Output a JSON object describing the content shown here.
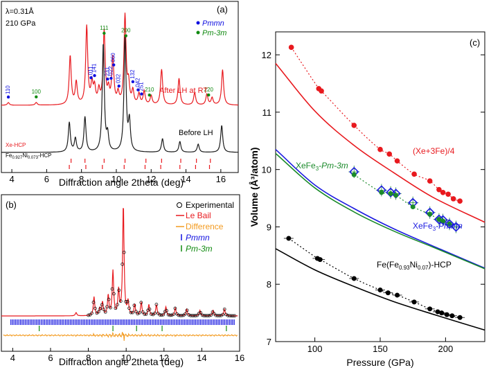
{
  "chart_data": [
    {
      "panel": "(a)",
      "type": "line",
      "xlabel": "Diffraction angle 2theta (deg)",
      "xlim": [
        3.4,
        17.0
      ],
      "xticks": [
        4,
        6,
        8,
        10,
        12,
        14,
        16
      ],
      "wavelength_label": "λ=0.31Å",
      "pressure_label": "210 GPa",
      "legend": [
        {
          "name": "Pmmn",
          "color": "#1010e0"
        },
        {
          "name": "Pm-3m",
          "color": "#108a10"
        }
      ],
      "trace_labels": {
        "after": "After LH at RT",
        "before": "Before LH"
      },
      "phase_labels": {
        "xe": "Xe-HCP",
        "fe_main": "Fe",
        "fe_sub": "0.927",
        "ni": "Ni",
        "ni_sub": "0.073",
        "fe_tail": "-HCP"
      },
      "series": [
        {
          "name": "After LH at RT",
          "color": "#e8191e",
          "baseline": 0.0,
          "peaks": [
            [
              3.8,
              0.03
            ],
            [
              5.4,
              0.03
            ],
            [
              7.35,
              0.55
            ],
            [
              7.7,
              0.25
            ],
            [
              8.3,
              0.88
            ],
            [
              8.6,
              0.22
            ],
            [
              8.75,
              0.18
            ],
            [
              9.0,
              0.15
            ],
            [
              9.3,
              0.82
            ],
            [
              9.55,
              0.15
            ],
            [
              9.8,
              0.52
            ],
            [
              10.1,
              0.12
            ],
            [
              10.5,
              1.0
            ],
            [
              10.7,
              0.22
            ],
            [
              10.95,
              0.15
            ],
            [
              11.3,
              0.12
            ],
            [
              11.6,
              0.15
            ],
            [
              12.0,
              0.1
            ],
            [
              12.6,
              0.4
            ],
            [
              13.6,
              0.3
            ],
            [
              14.5,
              0.14
            ],
            [
              15.2,
              0.12
            ],
            [
              15.5,
              0.08
            ],
            [
              16.1,
              0.4
            ]
          ]
        },
        {
          "name": "Before LH",
          "color": "#1a1a1a",
          "baseline": 0.0,
          "peaks": [
            [
              7.3,
              0.22
            ],
            [
              7.65,
              0.1
            ],
            [
              8.2,
              0.26
            ],
            [
              9.25,
              0.8
            ],
            [
              9.5,
              0.12
            ],
            [
              10.5,
              0.85
            ],
            [
              10.75,
              0.22
            ],
            [
              12.65,
              0.1
            ],
            [
              13.65,
              0.08
            ],
            [
              14.7,
              0.06
            ],
            [
              16.05,
              0.2
            ]
          ]
        }
      ],
      "pmmn_markers": [
        {
          "x": 3.8,
          "label": "110"
        },
        {
          "x": 8.55,
          "label": "011"
        },
        {
          "x": 8.75,
          "label": "141"
        },
        {
          "x": 9.5,
          "label": "231"
        },
        {
          "x": 9.7,
          "label": "022"
        },
        {
          "x": 9.85,
          "label": "060"
        },
        {
          "x": 10.15,
          "label": "032"
        },
        {
          "x": 10.95,
          "label": "132"
        },
        {
          "x": 11.25,
          "label": "042"
        },
        {
          "x": 11.45,
          "label": "251"
        }
      ],
      "pm3m_markers": [
        {
          "x": 5.4,
          "label": "100"
        },
        {
          "x": 9.3,
          "label": "111"
        },
        {
          "x": 10.55,
          "label": "200"
        },
        {
          "x": 11.9,
          "label": "210"
        },
        {
          "x": 15.3,
          "label": "220"
        }
      ],
      "xe_ticks": [
        7.4,
        8.2,
        9.3,
        10.5,
        11.7,
        12.6,
        13.7,
        14.6,
        15.4
      ],
      "fe_ticks": [
        7.3,
        8.25,
        9.2,
        10.45,
        11.65,
        12.55,
        13.65,
        14.55,
        15.35
      ]
    },
    {
      "panel": "(b)",
      "type": "line",
      "xlabel": "Diffraction angle 2theta (deg)",
      "xlim": [
        3.4,
        16.0
      ],
      "xticks": [
        4,
        6,
        8,
        10,
        12,
        14,
        16
      ],
      "legend": [
        {
          "name": "Experimental",
          "color": "#000000",
          "marker": "circle"
        },
        {
          "name": "Le Bail",
          "color": "#e8191e"
        },
        {
          "name": "Difference",
          "color": "#f39a1e"
        },
        {
          "name": "Pmmn",
          "color": "#1010e0",
          "marker": "tick"
        },
        {
          "name": "Pm-3m",
          "color": "#108a10",
          "marker": "tick"
        }
      ],
      "peaks": [
        [
          7.35,
          0.03
        ],
        [
          8.3,
          0.17
        ],
        [
          8.6,
          0.06
        ],
        [
          8.75,
          0.12
        ],
        [
          9.05,
          0.18
        ],
        [
          9.3,
          0.4
        ],
        [
          9.6,
          0.22
        ],
        [
          9.85,
          1.0
        ],
        [
          10.1,
          0.12
        ],
        [
          10.45,
          0.1
        ],
        [
          10.8,
          0.12
        ],
        [
          11.2,
          0.1
        ],
        [
          11.6,
          0.1
        ],
        [
          12.1,
          0.08
        ],
        [
          12.6,
          0.07
        ],
        [
          13.2,
          0.06
        ],
        [
          13.9,
          0.05
        ],
        [
          14.6,
          0.05
        ],
        [
          15.2,
          0.06
        ]
      ]
    },
    {
      "panel": "(c)",
      "type": "scatter",
      "xlabel": "Pressure (GPa)",
      "ylabel": "Volume (Å³/atom)",
      "xlim": [
        70,
        230
      ],
      "ylim": [
        7.0,
        12.4
      ],
      "xticks": [
        100,
        150,
        200
      ],
      "yticks": [
        7,
        8,
        9,
        10,
        11,
        12
      ],
      "series": [
        {
          "name": "(Xe+3Fe)/4",
          "color": "#e8191e",
          "kind": "points",
          "x": [
            82,
            103,
            105,
            130,
            150,
            157,
            163,
            176,
            188,
            195,
            198,
            202,
            206,
            211
          ],
          "y": [
            12.13,
            11.41,
            11.37,
            10.77,
            10.35,
            10.27,
            10.15,
            9.92,
            9.8,
            9.65,
            9.6,
            9.57,
            9.49,
            9.45
          ]
        },
        {
          "name": "XeFe3-Pm-3m",
          "color": "#1a8a2a",
          "kind": "points",
          "x": [
            130,
            151,
            158,
            162,
            175,
            188,
            195,
            198,
            203
          ],
          "y": [
            9.91,
            9.6,
            9.58,
            9.55,
            9.35,
            9.22,
            9.13,
            9.1,
            9.05
          ]
        },
        {
          "name": "XeFe3-Pmmn",
          "color": "#1a1ae0",
          "kind": "diamonds",
          "x": [
            130,
            151,
            158,
            162,
            175,
            188,
            195,
            198,
            203,
            208
          ],
          "y": [
            9.96,
            9.64,
            9.6,
            9.58,
            9.42,
            9.25,
            9.13,
            9.12,
            9.05,
            9.0
          ]
        },
        {
          "name": "Fe(Fe0.93Ni0.07)-HCP",
          "color": "#000000",
          "kind": "points",
          "x": [
            80,
            102,
            104,
            130,
            150,
            156,
            163,
            176,
            188,
            194,
            197,
            201,
            205,
            211
          ],
          "y": [
            8.8,
            8.45,
            8.43,
            8.1,
            7.9,
            7.85,
            7.81,
            7.69,
            7.57,
            7.52,
            7.5,
            7.47,
            7.45,
            7.42
          ]
        },
        {
          "name": "Xe+3Fe calc",
          "color": "#e8191e",
          "kind": "line",
          "x": [
            70,
            100,
            130,
            160,
            190,
            230
          ],
          "y": [
            11.85,
            11.02,
            10.42,
            9.95,
            9.52,
            9.08
          ]
        },
        {
          "name": "Pmmn calc",
          "color": "#1a1ae0",
          "kind": "line",
          "x": [
            70,
            100,
            130,
            160,
            190,
            230
          ],
          "y": [
            10.35,
            9.73,
            9.32,
            8.97,
            8.67,
            8.28
          ]
        },
        {
          "name": "Pm-3m calc",
          "color": "#1a8a2a",
          "kind": "line",
          "x": [
            70,
            100,
            130,
            160,
            190,
            230
          ],
          "y": [
            10.28,
            9.68,
            9.26,
            8.93,
            8.65,
            8.27
          ]
        },
        {
          "name": "Fe calc",
          "color": "#000000",
          "kind": "line",
          "x": [
            70,
            100,
            130,
            160,
            190,
            230
          ],
          "y": [
            8.62,
            8.25,
            7.96,
            7.7,
            7.48,
            7.2
          ]
        }
      ],
      "labels": {
        "xe3fe": "(Xe+3Fe)/4",
        "pm3m_a": "XeFe",
        "pm3m_sub": "3",
        "pm3m_b": "-Pm-3m",
        "pmmn_a": "XeFe",
        "pmmn_sub": "3",
        "pmmn_b": "-Pmmn",
        "fe_a": "Fe(Fe",
        "fe_sub1": "0.93",
        "fe_b": "Ni",
        "fe_sub2": "0.07",
        "fe_c": ")-HCP"
      }
    }
  ]
}
